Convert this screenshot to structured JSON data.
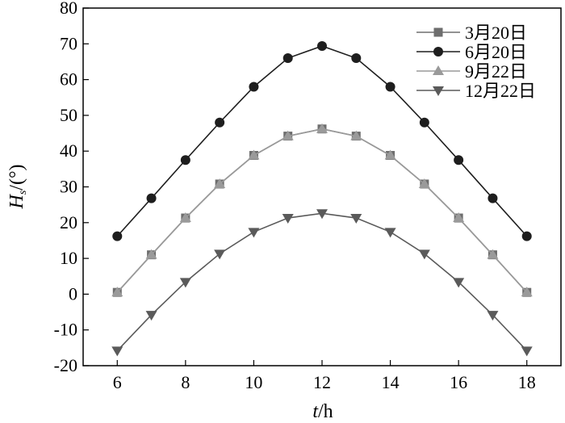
{
  "chart_data": {
    "type": "line",
    "xlabel_italic": "t",
    "xlabel_rest": "/h",
    "ylabel_italic": "H",
    "ylabel_sub": "s",
    "ylabel_rest": "/(°)",
    "xlim": [
      5,
      19
    ],
    "ylim": [
      -20,
      80
    ],
    "xticks": [
      6,
      8,
      10,
      12,
      14,
      16,
      18
    ],
    "yticks": [
      -20,
      -10,
      0,
      10,
      20,
      30,
      40,
      50,
      60,
      70,
      80
    ],
    "x": [
      6,
      7,
      8,
      9,
      10,
      11,
      12,
      13,
      14,
      15,
      16,
      17,
      18
    ],
    "legend_position": "top-right",
    "grid": false,
    "series": [
      {
        "name": "3月20日",
        "marker": "square",
        "color": "#6e6e6e",
        "values": [
          0.5,
          11,
          21.3,
          30.8,
          38.8,
          44.2,
          46.2,
          44.2,
          38.8,
          30.8,
          21.3,
          11,
          0.5
        ]
      },
      {
        "name": "6月20日",
        "marker": "circle",
        "color": "#1e1e1e",
        "values": [
          16.2,
          26.8,
          37.5,
          48,
          58,
          66,
          69.4,
          66,
          58,
          48,
          37.5,
          26.8,
          16.2
        ]
      },
      {
        "name": "9月22日",
        "marker": "triangle-up",
        "color": "#9a9a9a",
        "values": [
          0.5,
          11,
          21.3,
          30.8,
          38.8,
          44.2,
          46.2,
          44.2,
          38.8,
          30.8,
          21.3,
          11,
          0.5
        ]
      },
      {
        "name": "12月22日",
        "marker": "triangle-down",
        "color": "#5a5a5a",
        "values": [
          -15.8,
          -5.8,
          3.4,
          11.3,
          17.4,
          21.3,
          22.6,
          21.3,
          17.4,
          11.3,
          3.4,
          -5.8,
          -15.8
        ]
      }
    ]
  }
}
